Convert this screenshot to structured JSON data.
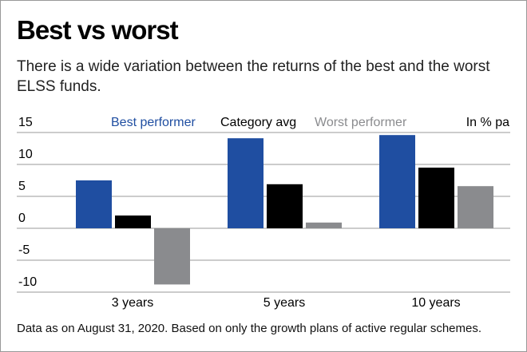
{
  "chart_data": {
    "type": "bar",
    "title": "Best vs worst",
    "subtitle": "There is a wide variation between the returns of the best and the worst ELSS funds.",
    "annotation": "In % pa",
    "footnote": "Data as on August 31, 2020. Based on only the growth plans of active regular schemes.",
    "categories": [
      "3 years",
      "5 years",
      "10 years"
    ],
    "series": [
      {
        "name": "Best performer",
        "color": "#1f4ea1",
        "values": [
          7.5,
          14.1,
          14.6
        ]
      },
      {
        "name": "Category avg",
        "color": "#000000",
        "values": [
          2.0,
          6.9,
          9.5
        ]
      },
      {
        "name": "Worst performer",
        "color": "#8a8b8e",
        "values": [
          -8.8,
          0.9,
          6.6
        ]
      }
    ],
    "ylim": [
      -10,
      15
    ],
    "yticks": [
      -10,
      -5,
      0,
      5,
      10,
      15
    ],
    "grid": true
  }
}
